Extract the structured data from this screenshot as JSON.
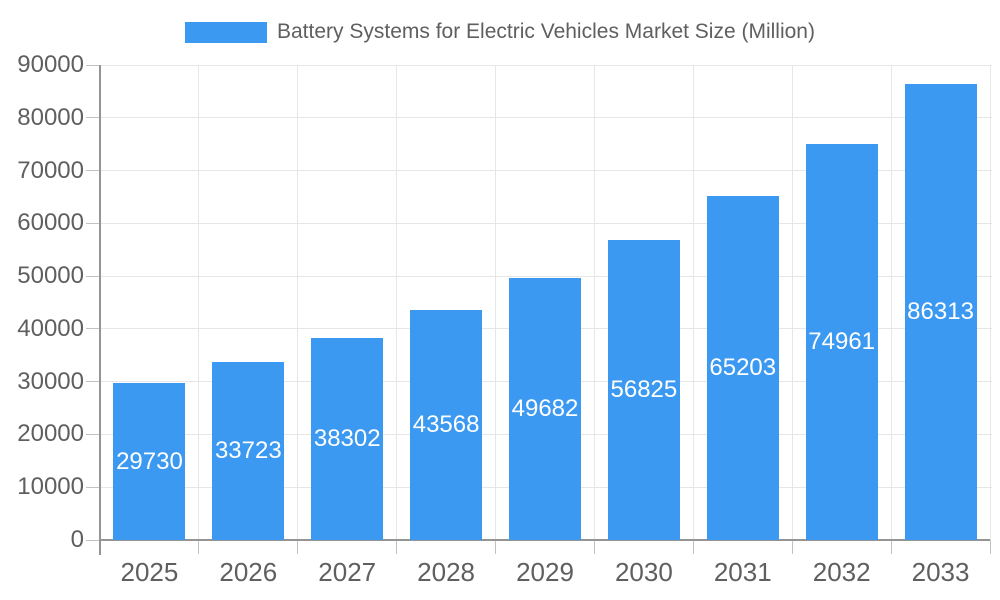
{
  "legend": {
    "label": "Battery Systems for Electric Vehicles Market Size (Million)",
    "swatch_color": "#3B99F1"
  },
  "chart_data": {
    "type": "bar",
    "title": "Battery Systems for Electric Vehicles Market Size (Million)",
    "legend_entries": [
      "Battery Systems for Electric Vehicles Market Size (Million)"
    ],
    "legend_position": "top-center",
    "categories": [
      "2025",
      "2026",
      "2027",
      "2028",
      "2029",
      "2030",
      "2031",
      "2032",
      "2033"
    ],
    "values": [
      29730,
      33723,
      38302,
      43568,
      49682,
      56825,
      65203,
      74961,
      86313
    ],
    "xlabel": "",
    "ylabel": "",
    "ylim": [
      0,
      90000
    ],
    "ytick_step": 10000,
    "ytick_labels": [
      "0",
      "10000",
      "20000",
      "30000",
      "40000",
      "50000",
      "60000",
      "70000",
      "80000",
      "90000"
    ],
    "grid": true,
    "value_labels": "inside-center, white",
    "colors": {
      "bar": "#3B99F1",
      "value_label": "#ffffff",
      "axis_text": "#5f5f5f",
      "gridline": "#e6e6e6",
      "axis_line": "#949494",
      "tick": "#c2c2c2",
      "background": "#ffffff"
    }
  }
}
